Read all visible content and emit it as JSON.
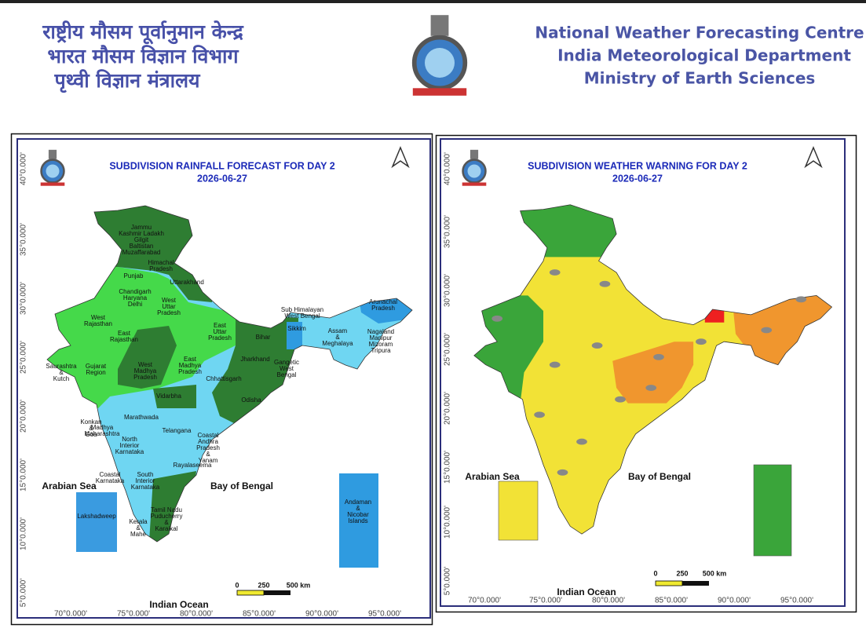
{
  "header": {
    "hindi_lines": [
      "राष्ट्रीय मौसम पूर्वानुमान केन्द्र",
      "भारत मौसम विज्ञान विभाग",
      "पृथ्वी विज्ञान मंत्रालय"
    ],
    "english_lines": [
      "National Weather Forecasting Centre",
      "India Meteorological Department",
      "Ministry of Earth Sciences"
    ]
  },
  "maps": [
    {
      "title": "SUBDIVISION RAINFALL FORECAST FOR DAY 2",
      "date": "2026-06-27",
      "latitude_labels": [
        "40°0.000'",
        "35°0.000'",
        "30°0.000'",
        "25°0.000'",
        "20°0.000'",
        "15°0.000'",
        "10°0.000'",
        "5°0.000'"
      ],
      "longitude_labels": [
        "70°0.000'",
        "75°0.000'",
        "80°0.000'",
        "85°0.000'",
        "90°0.000'",
        "95°0.000'"
      ],
      "sea_labels": [
        "Arabian Sea",
        "Bay of Bengal",
        "Indian Ocean"
      ],
      "scale_labels": [
        "0",
        "250",
        "500 km"
      ],
      "region_labels": [
        [
          "Jammu",
          "Kashmir Ladakh",
          "Gilgit",
          "Baltistan",
          "Muzaffarabad"
        ],
        [
          "Himachal",
          "Pradesh"
        ],
        [
          "Punjab"
        ],
        [
          "Uttarakhand"
        ],
        [
          "Chandigarh",
          "Haryana",
          "Delhi"
        ],
        [
          "West",
          "Uttar",
          "Pradesh"
        ],
        [
          "West",
          "Rajasthan"
        ],
        [
          "East",
          "Rajasthan"
        ],
        [
          "East",
          "Uttar",
          "Pradesh"
        ],
        [
          "Sub Himalayan",
          "West Bengal"
        ],
        [
          "Sikkim"
        ],
        [
          "Arunachal",
          "Pradesh"
        ],
        [
          "Assam",
          "&",
          "Meghalaya"
        ],
        [
          "Nagaland",
          "Manipur",
          "Mizoram",
          "Tripura"
        ],
        [
          "Bihar"
        ],
        [
          "Jharkhand"
        ],
        [
          "Gangetic",
          "West",
          "Bengal"
        ],
        [
          "Saurashtra",
          "&",
          "Kutch"
        ],
        [
          "Gujarat",
          "Region"
        ],
        [
          "West",
          "Madhya",
          "Pradesh"
        ],
        [
          "East",
          "Madhya",
          "Pradesh"
        ],
        [
          "Chhattisgarh"
        ],
        [
          "Odisha"
        ],
        [
          "Vidarbha"
        ],
        [
          "Marathwada"
        ],
        [
          "Konkan",
          "&",
          "Goa"
        ],
        [
          "Madhya",
          "Maharashtra"
        ],
        [
          "North",
          "Interior",
          "Karnataka"
        ],
        [
          "Telangana"
        ],
        [
          "Coastal",
          "Andhra",
          "Pradesh",
          "&",
          "Yanam"
        ],
        [
          "Rayalaseema"
        ],
        [
          "Coastal",
          "Karnataka"
        ],
        [
          "South",
          "Interior",
          "Karnataka"
        ],
        [
          "Tamil Nadu",
          "Puducherry",
          "&",
          "Karaikal"
        ],
        [
          "Kerala",
          "&",
          "Mahe"
        ],
        [
          "Lakshadweep"
        ],
        [
          "Andaman",
          "&",
          "Nicobar",
          "Islands"
        ]
      ]
    },
    {
      "title": "SUBDIVISION WEATHER WARNING FOR DAY 2",
      "date": "2026-06-27",
      "latitude_labels": [
        "40°0.000'",
        "35°0.000'",
        "30°0.000'",
        "25°0.000'",
        "20°0.000'",
        "15°0.000'",
        "10°0.000'",
        "5°0.000'"
      ],
      "longitude_labels": [
        "70°0.000'",
        "75°0.000'",
        "80°0.000'",
        "85°0.000'",
        "90°0.000'",
        "95°0.000'"
      ],
      "sea_labels": [
        "Arabian Sea",
        "Bay of Bengal",
        "Indian Ocean"
      ],
      "scale_labels": [
        "0",
        "250",
        "500 km"
      ]
    }
  ]
}
